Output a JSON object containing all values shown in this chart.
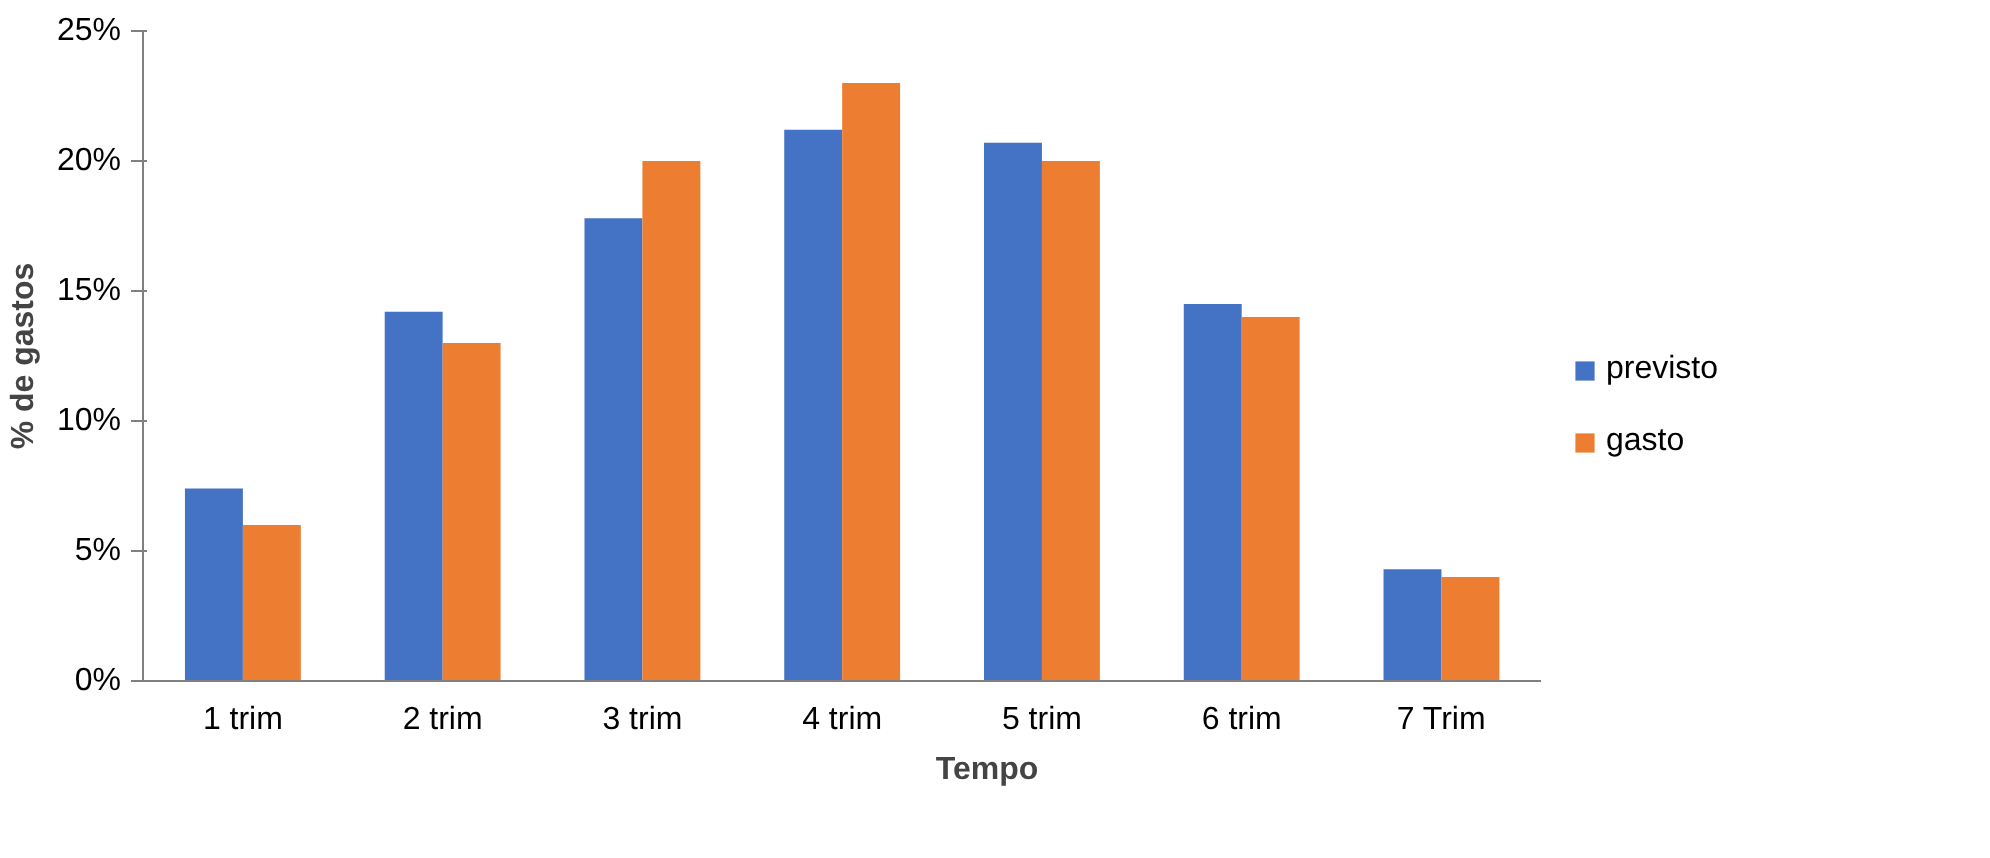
{
  "chart_data": {
    "type": "bar",
    "xlabel": "Tempo",
    "ylabel": "% de gastos",
    "categories": [
      "1 trim",
      "2 trim",
      "3 trim",
      "4 trim",
      "5 trim",
      "6 trim",
      "7 Trim"
    ],
    "series": [
      {
        "name": "previsto",
        "color": "#4472c4",
        "values": [
          7.4,
          14.2,
          17.8,
          21.2,
          20.7,
          14.5,
          4.3
        ]
      },
      {
        "name": "gasto",
        "color": "#ed7d31",
        "values": [
          6,
          13,
          20,
          23,
          20,
          14,
          4
        ]
      }
    ],
    "ylim": [
      0,
      25
    ],
    "yticks": [
      {
        "value": 0,
        "label": "0%"
      },
      {
        "value": 5,
        "label": "5%"
      },
      {
        "value": 10,
        "label": "10%"
      },
      {
        "value": 15,
        "label": "15%"
      },
      {
        "value": 20,
        "label": "20%"
      },
      {
        "value": 25,
        "label": "25%"
      }
    ],
    "grid": false,
    "legend": "right"
  }
}
